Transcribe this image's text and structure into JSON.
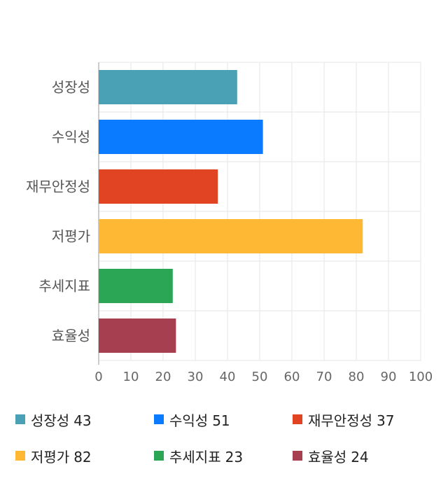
{
  "chart_data": {
    "type": "bar",
    "orientation": "horizontal",
    "categories": [
      "성장성",
      "수익성",
      "재무안정성",
      "저평가",
      "추세지표",
      "효율성"
    ],
    "values": [
      43,
      51,
      37,
      82,
      23,
      24
    ],
    "colors": [
      "#4aa0b5",
      "#0a7bff",
      "#e04422",
      "#ffb833",
      "#2aa655",
      "#a63f4f"
    ],
    "xlim": [
      0,
      100
    ],
    "xticks": [
      0,
      10,
      20,
      30,
      40,
      50,
      60,
      70,
      80,
      90,
      100
    ],
    "grid": true,
    "legend_placement": "bottom"
  },
  "legend": [
    {
      "label": "성장성",
      "value": "43",
      "color": "#4aa0b5"
    },
    {
      "label": "수익성",
      "value": "51",
      "color": "#0a7bff"
    },
    {
      "label": "재무안정성",
      "value": "37",
      "color": "#e04422"
    },
    {
      "label": "저평가",
      "value": "82",
      "color": "#ffb833"
    },
    {
      "label": "추세지표",
      "value": "23",
      "color": "#2aa655"
    },
    {
      "label": "효율성",
      "value": "24",
      "color": "#a63f4f"
    }
  ]
}
